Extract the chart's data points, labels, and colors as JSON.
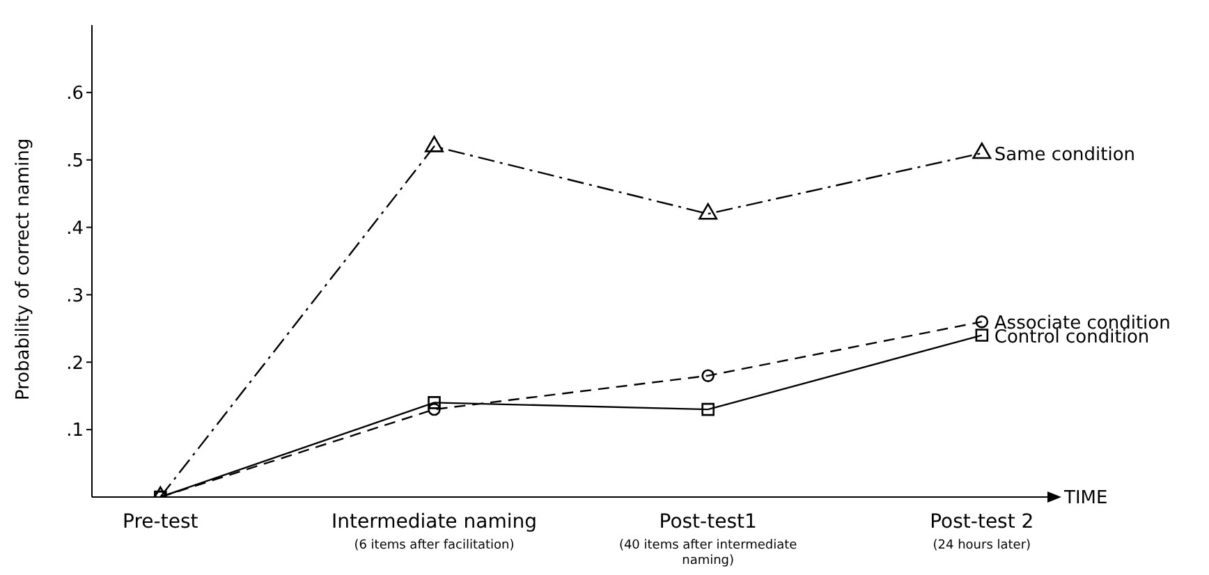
{
  "chart_data": {
    "type": "line",
    "xlabel": "TIME",
    "ylabel": "Probability of correct naming",
    "categories": [
      "Pre-test",
      "Intermediate naming\n(6 items after facilitation)",
      "Post-test1\n(40 items after intermediate\nnaming)",
      "Post-test 2\n(24 hours later)"
    ],
    "ylim": [
      0,
      0.7
    ],
    "yticks": [
      {
        "value": 0.1,
        "label": ".1"
      },
      {
        "value": 0.2,
        "label": ".2"
      },
      {
        "value": 0.3,
        "label": ".3"
      },
      {
        "value": 0.4,
        "label": ".4"
      },
      {
        "value": 0.5,
        "label": ".5"
      },
      {
        "value": 0.6,
        "label": ".6"
      }
    ],
    "legend": false,
    "grid": false,
    "series": [
      {
        "name": "Same condition",
        "color": "#000000",
        "marker": "triangle",
        "line_style": "dashdot",
        "values": [
          0,
          0.52,
          0.42,
          0.51
        ]
      },
      {
        "name": "Associate condition",
        "color": "#000000",
        "marker": "circle",
        "line_style": "dashed",
        "values": [
          0,
          0.13,
          0.18,
          0.26
        ]
      },
      {
        "name": "Control condition",
        "color": "#000000",
        "marker": "square",
        "line_style": "solid",
        "values": [
          0,
          0.14,
          0.13,
          0.24
        ]
      }
    ]
  }
}
